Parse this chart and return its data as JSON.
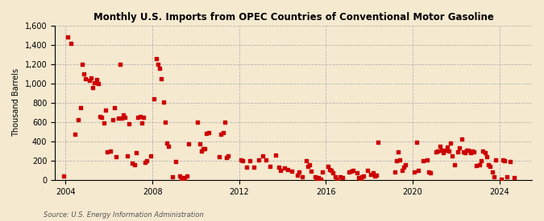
{
  "title": "Monthly U.S. Imports from OPEC Countries of Conventional Motor Gasoline",
  "ylabel": "Thousand Barrels",
  "source": "Source: U.S. Energy Information Administration",
  "background_color": "#f5e9d0",
  "scatter_color": "#cc0000",
  "ylim": [
    0,
    1600
  ],
  "yticks": [
    0,
    200,
    400,
    600,
    800,
    1000,
    1200,
    1400,
    1600
  ],
  "xlim_start": 2003.5,
  "xlim_end": 2025.5,
  "xticks": [
    2004,
    2008,
    2012,
    2016,
    2020,
    2024
  ],
  "data_x": [
    2003.92,
    2004.08,
    2004.25,
    2004.42,
    2004.58,
    2004.67,
    2004.75,
    2004.83,
    2004.92,
    2005.08,
    2005.17,
    2005.25,
    2005.33,
    2005.42,
    2005.5,
    2005.58,
    2005.67,
    2005.75,
    2005.83,
    2005.92,
    2006.08,
    2006.17,
    2006.25,
    2006.33,
    2006.42,
    2006.5,
    2006.58,
    2006.67,
    2006.75,
    2006.83,
    2006.92,
    2007.08,
    2007.17,
    2007.25,
    2007.33,
    2007.42,
    2007.5,
    2007.58,
    2007.67,
    2007.75,
    2007.92,
    2008.08,
    2008.17,
    2008.25,
    2008.33,
    2008.42,
    2008.5,
    2008.58,
    2008.67,
    2008.75,
    2008.92,
    2009.08,
    2009.25,
    2009.33,
    2009.42,
    2009.5,
    2009.58,
    2009.67,
    2010.08,
    2010.17,
    2010.25,
    2010.33,
    2010.42,
    2010.5,
    2010.58,
    2011.08,
    2011.17,
    2011.25,
    2011.33,
    2011.42,
    2011.5,
    2012.08,
    2012.17,
    2012.33,
    2012.5,
    2012.67,
    2012.92,
    2013.08,
    2013.25,
    2013.42,
    2013.67,
    2013.83,
    2013.92,
    2014.08,
    2014.25,
    2014.42,
    2014.67,
    2014.75,
    2014.92,
    2015.08,
    2015.17,
    2015.25,
    2015.33,
    2015.5,
    2015.58,
    2015.67,
    2015.75,
    2015.83,
    2016.08,
    2016.17,
    2016.25,
    2016.33,
    2016.42,
    2016.5,
    2016.67,
    2016.75,
    2017.08,
    2017.17,
    2017.25,
    2017.42,
    2017.5,
    2017.58,
    2017.67,
    2017.75,
    2017.92,
    2018.08,
    2018.17,
    2018.25,
    2018.33,
    2018.42,
    2019.17,
    2019.25,
    2019.33,
    2019.42,
    2019.5,
    2019.58,
    2019.67,
    2020.08,
    2020.17,
    2020.25,
    2020.5,
    2020.67,
    2020.75,
    2020.83,
    2021.08,
    2021.17,
    2021.25,
    2021.33,
    2021.42,
    2021.5,
    2021.58,
    2021.67,
    2021.75,
    2021.83,
    2021.92,
    2022.08,
    2022.17,
    2022.25,
    2022.33,
    2022.42,
    2022.5,
    2022.58,
    2022.67,
    2022.75,
    2022.83,
    2022.92,
    2023.08,
    2023.17,
    2023.25,
    2023.33,
    2023.42,
    2023.5,
    2023.58,
    2023.67,
    2023.75,
    2023.83,
    2024.08,
    2024.17,
    2024.25,
    2024.33,
    2024.5,
    2024.67
  ],
  "data_y": [
    40,
    1480,
    1420,
    470,
    620,
    750,
    1200,
    1100,
    1050,
    1030,
    1060,
    960,
    1010,
    1040,
    1000,
    660,
    650,
    590,
    720,
    290,
    300,
    620,
    750,
    240,
    640,
    1200,
    640,
    670,
    650,
    250,
    580,
    170,
    160,
    280,
    650,
    660,
    590,
    650,
    180,
    200,
    250,
    840,
    1260,
    1200,
    1160,
    1050,
    810,
    600,
    380,
    350,
    30,
    190,
    40,
    0,
    20,
    10,
    40,
    370,
    600,
    370,
    300,
    320,
    320,
    480,
    490,
    240,
    470,
    490,
    600,
    230,
    250,
    210,
    200,
    130,
    200,
    130,
    210,
    250,
    210,
    140,
    260,
    130,
    100,
    120,
    110,
    90,
    50,
    80,
    30,
    200,
    140,
    160,
    90,
    30,
    0,
    20,
    10,
    80,
    140,
    110,
    100,
    70,
    30,
    0,
    30,
    20,
    80,
    90,
    100,
    70,
    20,
    10,
    30,
    40,
    100,
    60,
    70,
    40,
    50,
    390,
    80,
    200,
    290,
    210,
    100,
    130,
    160,
    80,
    390,
    100,
    200,
    210,
    80,
    70,
    290,
    300,
    350,
    310,
    280,
    310,
    340,
    300,
    380,
    250,
    160,
    290,
    330,
    420,
    290,
    280,
    310,
    310,
    280,
    300,
    290,
    150,
    160,
    200,
    300,
    280,
    240,
    160,
    140,
    80,
    30,
    210,
    10,
    210,
    200,
    30,
    190,
    20
  ]
}
